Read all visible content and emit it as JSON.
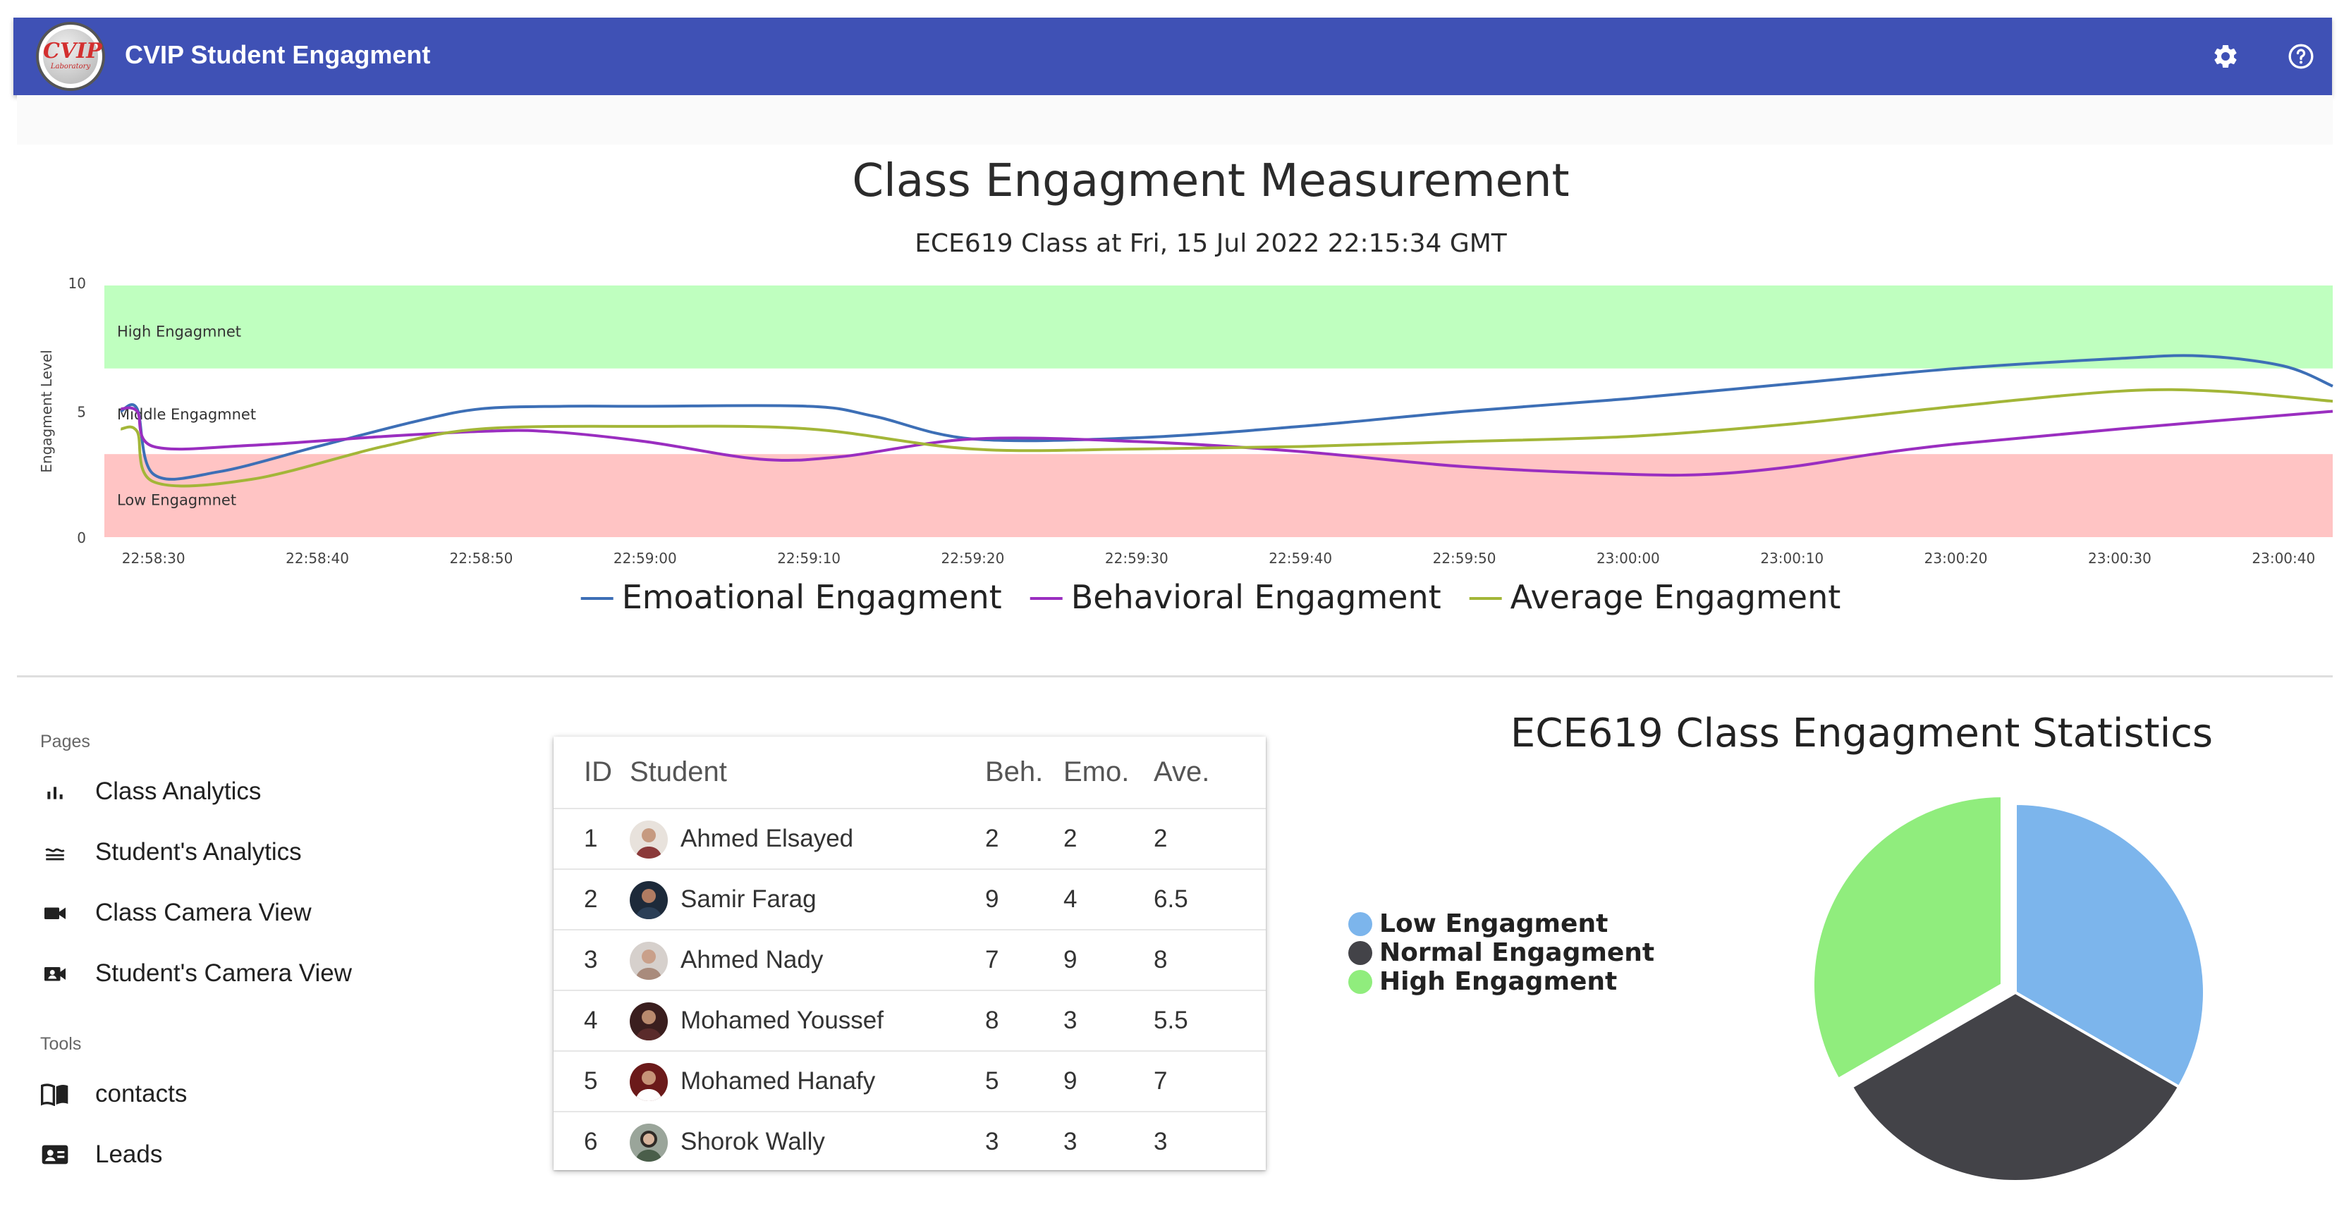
{
  "app": {
    "title": "CVIP Student Engagment",
    "logo_text": "CVIP",
    "logo_sub": "Laboratory"
  },
  "toolbar": {
    "settings_icon": "gear-icon",
    "help_icon": "help-circle-icon"
  },
  "engagement_chart": {
    "title": "Class Engagment Measurement",
    "subtitle": "ECE619 Class at Fri, 15 Jul 2022 22:15:34 GMT",
    "band_labels": {
      "high": "High Engagmnet",
      "middle": "Middle Engagmnet",
      "low": "Low Engagmnet"
    },
    "band_colors": {
      "high": "#bfffbf",
      "low": "#ffc4c4"
    }
  },
  "chart_data": {
    "type": "line",
    "title": "Class Engagment Measurement",
    "subtitle": "ECE619 Class at Fri, 15 Jul 2022 22:15:34 GMT",
    "xlabel": "",
    "ylabel": "Engagment Level",
    "ylim": [
      0,
      10
    ],
    "yticks": [
      "0",
      "5",
      "10"
    ],
    "x_start": "22:58:27",
    "x_end": "23:00:43",
    "xticks": [
      "22:58:30",
      "22:58:40",
      "22:58:50",
      "22:59:00",
      "22:59:10",
      "22:59:20",
      "22:59:30",
      "22:59:40",
      "22:59:50",
      "23:00:00",
      "23:00:10",
      "23:00:20",
      "23:00:30",
      "23:00:40"
    ],
    "bands": [
      {
        "label": "High Engagmnet",
        "from": 6.7,
        "to": 10,
        "color": "#bfffbf"
      },
      {
        "label": "Middle Engagmnet",
        "from": 3.3,
        "to": 6.7,
        "color": "#ffffff"
      },
      {
        "label": "Low Engagmnet",
        "from": 0,
        "to": 3.3,
        "color": "#ffc4c4"
      }
    ],
    "legend_position": "bottom",
    "series": [
      {
        "name": "Emoational Engagment",
        "color": "#3d6fb6",
        "points": [
          [
            "22:58:28",
            5.0
          ],
          [
            "22:58:29",
            5.1
          ],
          [
            "22:58:30",
            2.5
          ],
          [
            "22:58:34",
            2.6
          ],
          [
            "22:58:40",
            3.6
          ],
          [
            "22:58:46",
            4.6
          ],
          [
            "22:58:50",
            5.1
          ],
          [
            "22:58:55",
            5.2
          ],
          [
            "22:59:00",
            5.2
          ],
          [
            "22:59:10",
            5.2
          ],
          [
            "22:59:14",
            4.8
          ],
          [
            "22:59:20",
            3.9
          ],
          [
            "22:59:30",
            3.95
          ],
          [
            "22:59:40",
            4.4
          ],
          [
            "22:59:50",
            5.0
          ],
          [
            "23:00:00",
            5.5
          ],
          [
            "23:00:10",
            6.1
          ],
          [
            "23:00:20",
            6.7
          ],
          [
            "23:00:30",
            7.1
          ],
          [
            "23:00:35",
            7.2
          ],
          [
            "23:00:40",
            6.8
          ],
          [
            "23:00:43",
            6.0
          ]
        ]
      },
      {
        "name": "Behavioral Engagment",
        "color": "#9a2ec0",
        "points": [
          [
            "22:58:28",
            5.1
          ],
          [
            "22:58:29",
            5.0
          ],
          [
            "22:58:30",
            3.6
          ],
          [
            "22:58:36",
            3.65
          ],
          [
            "22:58:44",
            4.0
          ],
          [
            "22:58:50",
            4.2
          ],
          [
            "22:58:54",
            4.2
          ],
          [
            "22:59:00",
            3.8
          ],
          [
            "22:59:07",
            3.1
          ],
          [
            "22:59:12",
            3.2
          ],
          [
            "22:59:20",
            3.9
          ],
          [
            "22:59:30",
            3.8
          ],
          [
            "22:59:40",
            3.4
          ],
          [
            "22:59:50",
            2.8
          ],
          [
            "23:00:00",
            2.5
          ],
          [
            "23:00:05",
            2.5
          ],
          [
            "23:00:10",
            2.8
          ],
          [
            "23:00:15",
            3.3
          ],
          [
            "23:00:20",
            3.7
          ],
          [
            "23:00:30",
            4.3
          ],
          [
            "23:00:43",
            5.0
          ]
        ]
      },
      {
        "name": "Average Engagment",
        "color": "#a3b638",
        "points": [
          [
            "22:58:28",
            4.3
          ],
          [
            "22:58:29",
            4.2
          ],
          [
            "22:58:30",
            2.2
          ],
          [
            "22:58:36",
            2.3
          ],
          [
            "22:58:44",
            3.6
          ],
          [
            "22:58:50",
            4.3
          ],
          [
            "22:59:00",
            4.4
          ],
          [
            "22:59:10",
            4.3
          ],
          [
            "22:59:20",
            3.5
          ],
          [
            "22:59:30",
            3.5
          ],
          [
            "22:59:40",
            3.6
          ],
          [
            "22:59:50",
            3.8
          ],
          [
            "23:00:00",
            4.0
          ],
          [
            "23:00:10",
            4.5
          ],
          [
            "23:00:20",
            5.2
          ],
          [
            "23:00:30",
            5.8
          ],
          [
            "23:00:36",
            5.8
          ],
          [
            "23:00:43",
            5.4
          ]
        ]
      }
    ]
  },
  "sidebar": {
    "sections": [
      {
        "title": "Pages",
        "items": [
          {
            "label": "Class Analytics",
            "icon": "bar-chart-icon"
          },
          {
            "label": "Student's Analytics",
            "icon": "waves-icon"
          },
          {
            "label": "Class Camera View",
            "icon": "videocam-icon"
          },
          {
            "label": "Student's Camera View",
            "icon": "video-call-icon"
          }
        ]
      },
      {
        "title": "Tools",
        "items": [
          {
            "label": "contacts",
            "icon": "book-open-icon"
          },
          {
            "label": "Leads",
            "icon": "contact-card-icon"
          }
        ]
      }
    ]
  },
  "students_table": {
    "headers": [
      "ID",
      "Student",
      "Beh.",
      "Emo.",
      "Ave."
    ],
    "rows": [
      {
        "id": "1",
        "student": "Ahmed Elsayed",
        "beh": "2",
        "emo": "2",
        "ave": "2",
        "avatar_color": "#8b3a3a"
      },
      {
        "id": "2",
        "student": "Samir Farag",
        "beh": "9",
        "emo": "4",
        "ave": "6.5",
        "avatar_color": "#2b3f57"
      },
      {
        "id": "3",
        "student": "Ahmed Nady",
        "beh": "7",
        "emo": "9",
        "ave": "8",
        "avatar_color": "#a98b7c"
      },
      {
        "id": "4",
        "student": "Mohamed Youssef",
        "beh": "8",
        "emo": "3",
        "ave": "5.5",
        "avatar_color": "#5a2b2b"
      },
      {
        "id": "5",
        "student": "Mohamed Hanafy",
        "beh": "5",
        "emo": "9",
        "ave": "7",
        "avatar_color": "#7a2020"
      },
      {
        "id": "6",
        "student": "Shorok Wally",
        "beh": "3",
        "emo": "3",
        "ave": "3",
        "avatar_color": "#4a5e4a"
      }
    ]
  },
  "stats": {
    "title": "ECE619 Class Engagment Statistics",
    "chart_data": {
      "type": "pie",
      "title": "ECE619 Class Engagment Statistics",
      "legend_position": "left",
      "slices": [
        {
          "name": "Low Engagment",
          "value": 33.3,
          "color": "#7cb5ec"
        },
        {
          "name": "Normal Engagment",
          "value": 33.3,
          "color": "#434348"
        },
        {
          "name": "High Engagment",
          "value": 33.3,
          "color": "#90ed7d"
        }
      ]
    }
  }
}
